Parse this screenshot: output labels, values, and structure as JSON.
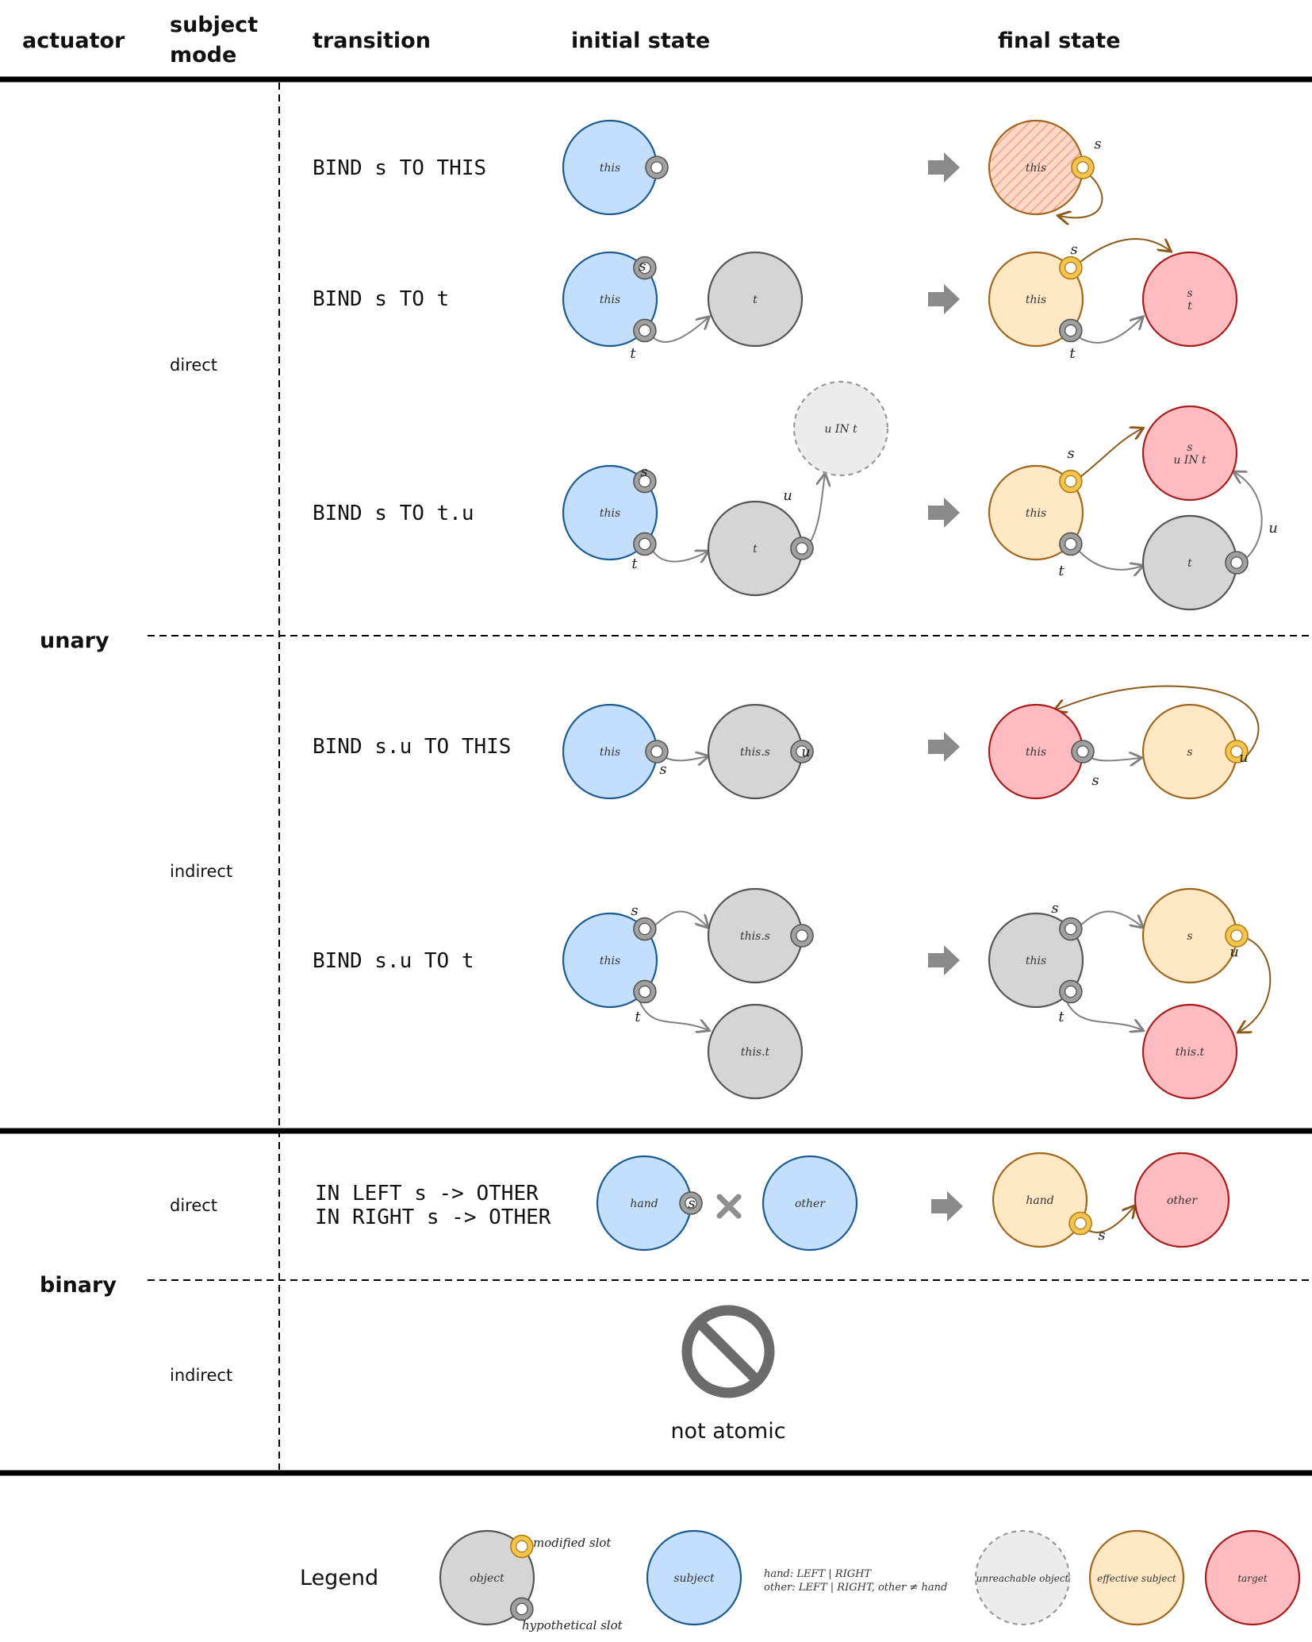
{
  "header": {
    "actuator": "actuator",
    "subject_mode_line1": "subject",
    "subject_mode_line2": "mode",
    "transition": "transition",
    "initial_state": "initial state",
    "final_state": "final state"
  },
  "groups": {
    "unary": "unary",
    "binary": "binary"
  },
  "modes": {
    "unary_direct": "direct",
    "unary_indirect": "indirect",
    "binary_direct": "direct",
    "binary_indirect": "indirect"
  },
  "transitions": {
    "r1": "BIND s TO THIS",
    "r2": "BIND s TO t",
    "r3": "BIND s TO t.u",
    "r4": "BIND s.u TO THIS",
    "r5": "BIND s.u TO t",
    "b1_line1": "IN LEFT s -> OTHER",
    "b1_line2": "IN RIGHT s -> OTHER"
  },
  "nodes": {
    "this": "this",
    "t": "t",
    "s": "s",
    "u_in_t": "u IN t",
    "this_s": "this.s",
    "this_t": "this.t",
    "hand": "hand",
    "other": "other"
  },
  "slots": {
    "s": "s",
    "t": "t",
    "u": "u"
  },
  "not_atomic": "not atomic",
  "legend": {
    "title": "Legend",
    "object": "object",
    "modified_slot": "modified slot",
    "hypothetical_slot": "hypothetical slot",
    "subject": "subject",
    "hand_note": "hand: LEFT | RIGHT",
    "other_note": "other: LEFT | RIGHT, other ≠ hand",
    "unreachable": "unreachable object",
    "effective_subject": "effective subject",
    "target": "target"
  },
  "colors": {
    "subject_fill": "#c3dffc",
    "subject_stroke": "#1c5a93",
    "object_fill": "#d5d5d5",
    "object_stroke": "#555555",
    "unreachable_fill": "#ececec",
    "unreachable_stroke": "#999999",
    "effective_fill": "#ffe8c3",
    "effective_stroke": "#a0661e",
    "target_fill": "#ffbcc0",
    "target_stroke": "#a81c1c",
    "modified_slot": "#f5c450",
    "hypothetical_slot": "#a0a0a0",
    "arrow_gray": "#808080",
    "arrow_brown": "#8a5a1a",
    "transition_arrow": "#8a8a8a",
    "forbidden": "#6b6b6b"
  }
}
